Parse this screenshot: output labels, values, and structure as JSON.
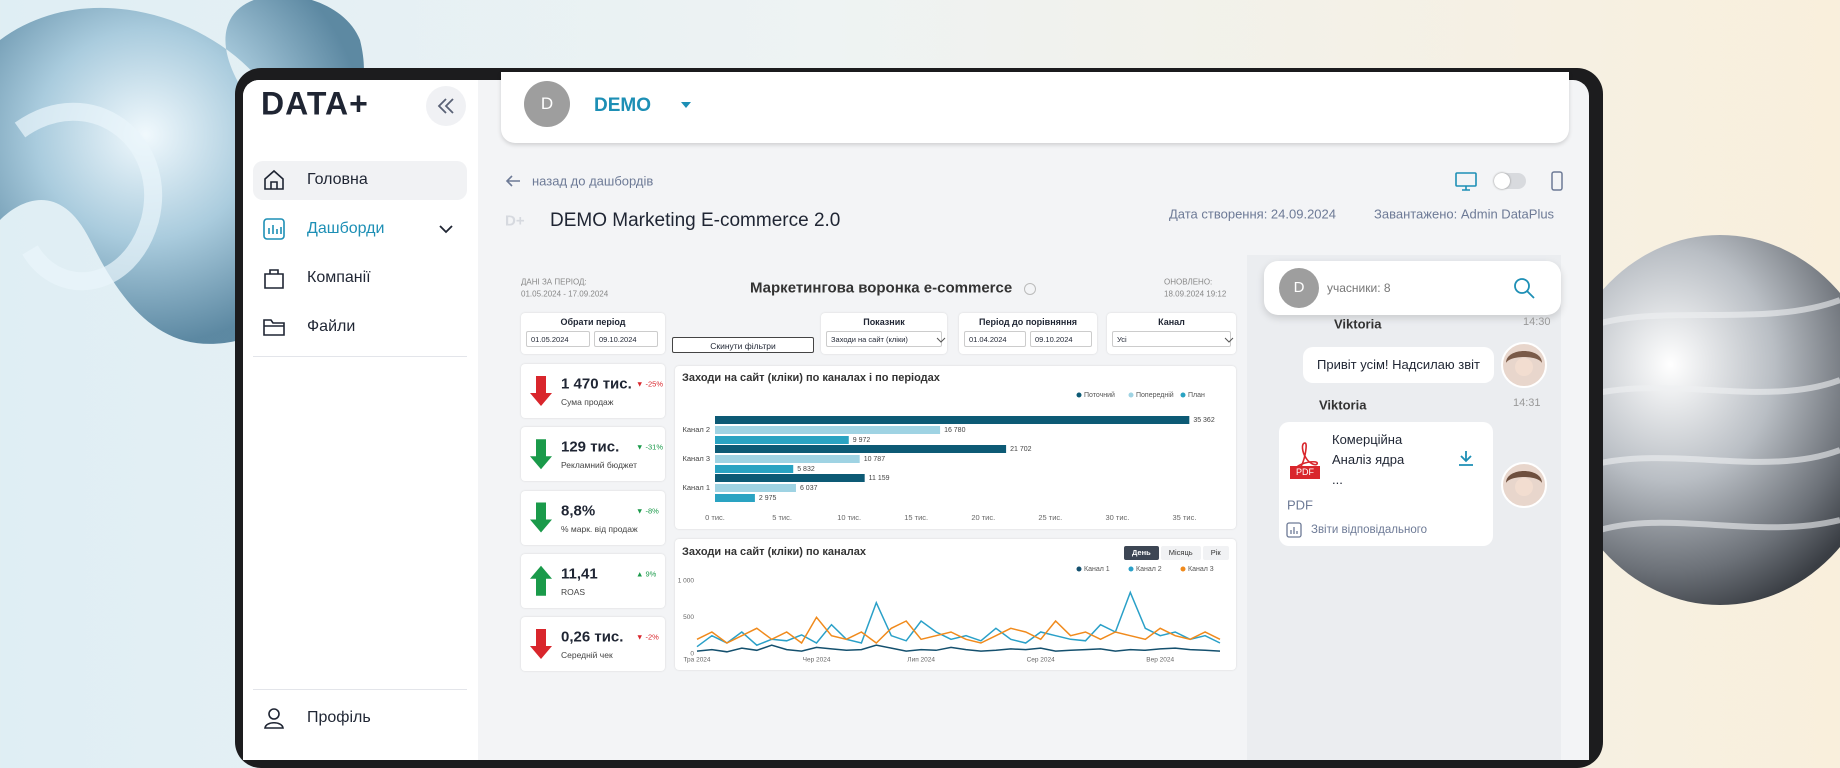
{
  "sidebar": {
    "logo": "DATA+",
    "nav": [
      "Головна",
      "Дашборди",
      "Компанії",
      "Файли"
    ],
    "profile": "Профіль"
  },
  "header": {
    "avatar": "D",
    "workspace": "DEMO"
  },
  "page": {
    "back": "назад до дашбордів",
    "icon": "D+",
    "title": "DEMO Marketing E-commerce 2.0",
    "created": "Дата створення: 24.09.2024",
    "uploaded": "Завантажено: Admin DataPlus"
  },
  "dashboard": {
    "period_label": "ДАНІ ЗА ПЕРІОД:",
    "period": "01.05.2024 - 17.09.2024",
    "title": "Маркетингова воронка e-commerce",
    "updated_label": "ОНОВЛЕНО:",
    "updated": "18.09.2024 19:12",
    "filters": {
      "period": {
        "label": "Обрати період",
        "from": "01.05.2024",
        "to": "09.10.2024"
      },
      "reset": "Скинути фільтри",
      "metric": {
        "label": "Показник",
        "value": "Заходи на сайт (кліки)"
      },
      "compare": {
        "label": "Період до порівняння",
        "from": "01.04.2024",
        "to": "09.10.2024"
      },
      "channel": {
        "label": "Канал",
        "value": "Усі"
      }
    },
    "kpis": [
      {
        "value": "1 470 тис.",
        "change": "▼ -25%",
        "label": "Сума продаж",
        "arrow": "down",
        "color": "#d9262c"
      },
      {
        "value": "129 тис.",
        "change": "▼ -31%",
        "label": "Рекламний бюджет",
        "arrow": "down",
        "color": "#1a9a4a"
      },
      {
        "value": "8,8%",
        "change": "▼ -8%",
        "label": "% марк. від продаж",
        "arrow": "down",
        "color": "#1a9a4a"
      },
      {
        "value": "11,41",
        "change": "▲ 9%",
        "label": "ROAS",
        "arrow": "up",
        "color": "#1a9a4a"
      },
      {
        "value": "0,26 тис.",
        "change": "▼ -2%",
        "label": "Середній чек",
        "arrow": "down",
        "color": "#d9262c"
      }
    ]
  },
  "chart_data": [
    {
      "type": "bar",
      "orientation": "horizontal",
      "title": "Заходи на сайт (кліки) по каналах і по періодах",
      "categories": [
        "Канал 2",
        "Канал 3",
        "Канал 1"
      ],
      "series": [
        {
          "name": "Поточний",
          "color": "#0d5a75",
          "values": [
            35362,
            21702,
            11159
          ],
          "value_labels": [
            "35 362",
            "21 702",
            "11 159"
          ]
        },
        {
          "name": "Попередній",
          "color": "#9fd3e3",
          "values": [
            16780,
            10787,
            6037
          ],
          "value_labels": [
            "16 780",
            "10 787",
            "6 037"
          ]
        },
        {
          "name": "План",
          "color": "#2aa3c2",
          "values": [
            9972,
            5832,
            2975
          ],
          "value_labels": [
            "9 972",
            "5 832",
            "2 975"
          ]
        }
      ],
      "xlim": [
        0,
        37500
      ],
      "xticks": [
        {
          "value": 0,
          "label": "0 тис."
        },
        {
          "value": 5000,
          "label": "5 тис."
        },
        {
          "value": 10000,
          "label": "10 тис."
        },
        {
          "value": 15000,
          "label": "15 тис."
        },
        {
          "value": 20000,
          "label": "20 тис."
        },
        {
          "value": 25000,
          "label": "25 тис."
        },
        {
          "value": 30000,
          "label": "30 тис."
        },
        {
          "value": 35000,
          "label": "35 тис."
        }
      ],
      "legend": "top-right"
    },
    {
      "type": "line",
      "title": "Заходи на сайт (кліки) по каналах",
      "periods": [
        "День",
        "Місяць",
        "Рік"
      ],
      "categories": [
        "Тра 2024",
        null,
        null,
        null,
        null,
        null,
        null,
        null,
        "Чер 2024",
        null,
        null,
        null,
        null,
        null,
        null,
        "Лип 2024",
        null,
        null,
        null,
        null,
        null,
        null,
        null,
        "Сер 2024",
        null,
        null,
        null,
        null,
        null,
        null,
        null,
        "Вер 2024",
        null,
        null,
        null,
        null
      ],
      "series": [
        {
          "name": "Канал 1",
          "color": "#14506e",
          "values": [
            40,
            60,
            30,
            80,
            50,
            120,
            60,
            40,
            90,
            70,
            50,
            60,
            120,
            80,
            40,
            60,
            50,
            90,
            60,
            40,
            50,
            70,
            60,
            80,
            40,
            50,
            60,
            70,
            40,
            60,
            50,
            70,
            80,
            60,
            50,
            40
          ]
        },
        {
          "name": "Канал 2",
          "color": "#2aa0c8",
          "values": [
            100,
            250,
            150,
            300,
            120,
            200,
            180,
            260,
            150,
            400,
            200,
            150,
            700,
            250,
            180,
            450,
            300,
            200,
            250,
            180,
            350,
            200,
            150,
            300,
            250,
            200,
            180,
            400,
            300,
            840,
            350,
            250,
            300,
            200,
            250,
            150
          ]
        },
        {
          "name": "Канал 3",
          "color": "#f08a1c",
          "values": [
            200,
            300,
            150,
            250,
            350,
            200,
            300,
            150,
            500,
            250,
            200,
            300,
            150,
            350,
            450,
            200,
            250,
            300,
            200,
            150,
            250,
            350,
            300,
            200,
            450,
            250,
            300,
            200,
            300,
            250,
            200,
            350,
            250,
            200,
            300,
            200
          ]
        }
      ],
      "ylim": [
        0,
        1050
      ],
      "yticks": [
        0,
        500,
        {
          "value": 1000,
          "label": "1 000"
        }
      ],
      "legend": "top-right"
    }
  ],
  "chat": {
    "avatar": "D",
    "participants": "учасники: 8",
    "messages": [
      {
        "author": "Viktoria",
        "time": "14:30",
        "text": "Привіт усім! Надсилаю звіт"
      },
      {
        "author": "Viktoria",
        "time": "14:31",
        "file": {
          "icon": "PDF",
          "name": "Комерційна Аналіз ядра ...",
          "type": "PDF",
          "link": "Звіти відповідального"
        }
      }
    ]
  }
}
